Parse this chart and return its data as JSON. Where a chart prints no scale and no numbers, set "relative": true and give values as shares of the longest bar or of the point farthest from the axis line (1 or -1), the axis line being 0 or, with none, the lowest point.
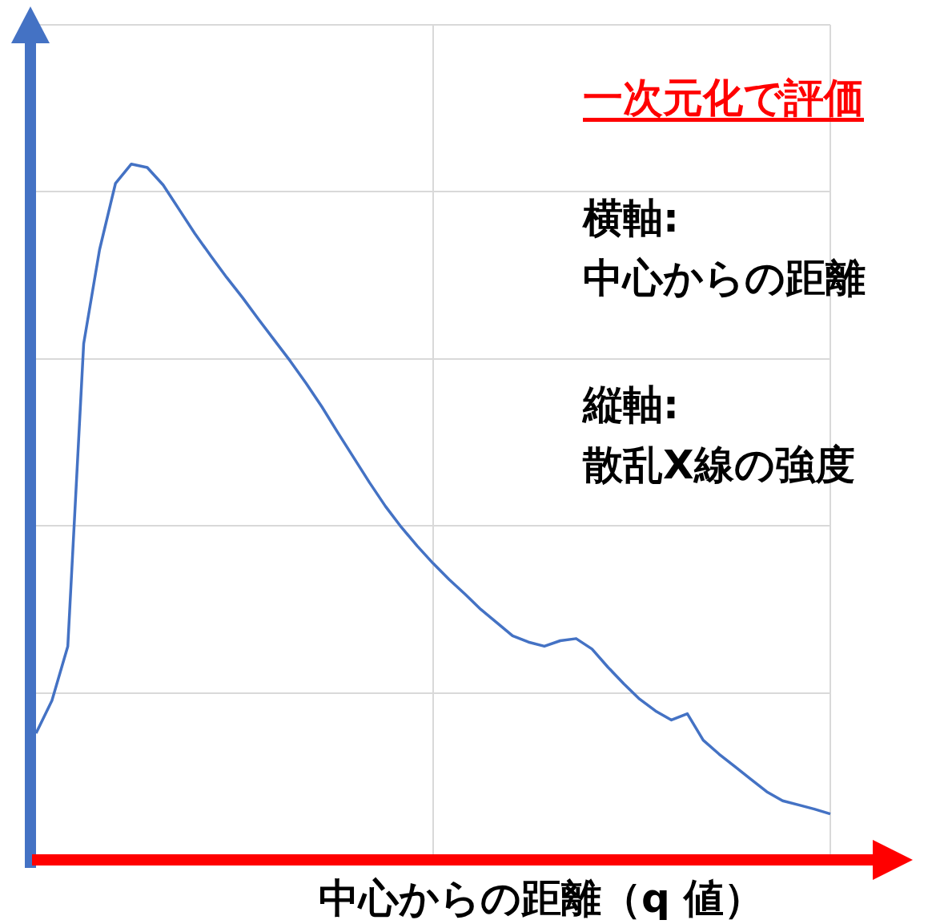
{
  "chart_data": {
    "type": "line",
    "relative": true,
    "grid": true,
    "marker": "none",
    "line_style": "solid",
    "xlabel": "中心からの距離（q 値）",
    "annotations": [
      "一次元化で評価",
      "横軸:",
      "中心からの距離",
      "縦軸:",
      "散乱X線の強度"
    ],
    "categories": [
      null,
      null,
      null,
      null,
      null,
      null,
      null,
      null,
      null,
      null,
      null,
      null,
      null,
      null,
      null,
      null,
      null,
      null,
      null,
      null,
      null,
      null,
      null,
      null,
      null,
      null,
      null,
      null,
      null,
      null,
      null,
      null,
      null,
      null,
      null,
      null,
      null,
      null,
      null,
      null,
      null,
      null,
      null,
      null,
      null,
      null,
      null,
      null,
      null,
      null,
      null
    ],
    "series": [
      {
        "color": "#4472c4",
        "values": [
          0.182,
          0.229,
          0.307,
          0.742,
          0.877,
          0.972,
          1,
          0.995,
          0.97,
          0.935,
          0.9,
          0.868,
          0.837,
          0.808,
          0.777,
          0.747,
          0.717,
          0.685,
          0.651,
          0.614,
          0.578,
          0.542,
          0.508,
          0.478,
          0.451,
          0.426,
          0.403,
          0.382,
          0.36,
          0.341,
          0.322,
          0.313,
          0.307,
          0.315,
          0.318,
          0.303,
          0.277,
          0.253,
          0.231,
          0.214,
          0.201,
          0.21,
          0.172,
          0.152,
          0.134,
          0.116,
          0.098,
          0.085,
          0.079,
          0.073,
          0.066
        ]
      }
    ]
  }
}
